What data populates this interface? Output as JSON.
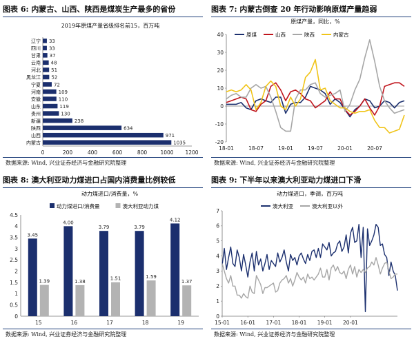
{
  "panels": [
    {
      "label": "图表 6:",
      "title": "内蒙古、山西、陕西是煤炭生产最多的省份",
      "source": "数据来源: Wind, 兴业证券经济与金融研究院整理"
    },
    {
      "label": "图表 7:",
      "title": "内蒙古倒查 20 年行动影响原煤产量趋弱",
      "source": "数据来源: Wind, 兴业证券经济与金融研究院整理"
    },
    {
      "label": "图表 8:",
      "title": "澳大利亚动力煤进口占国内消费量比例较低",
      "source": "数据来源: Wind, 兴业证券经济与金融研究院整理"
    },
    {
      "label": "图表 9:",
      "title": "下半年以来澳大利亚动力煤进口下滑",
      "source": "数据来源: Wind, 兴业证券经济与金融研究院整理"
    }
  ],
  "chart_data": [
    {
      "type": "bar",
      "orientation": "horizontal",
      "title": "2019年原煤产量省级排名前15，百万吨",
      "categories": [
        "辽宁",
        "四川",
        "甘肃",
        "云南",
        "河北",
        "黑龙江",
        "宁夏",
        "河南",
        "安徽",
        "山东",
        "贵州",
        "新疆",
        "陕西",
        "山西",
        "内蒙古"
      ],
      "values": [
        33,
        33,
        37,
        48,
        51,
        52,
        72,
        109,
        110,
        119,
        130,
        238,
        634,
        971,
        1035
      ],
      "xlim": [
        0,
        1200
      ],
      "xticks": [
        "0",
        "200",
        "400",
        "600",
        "800",
        "1000",
        "1200"
      ],
      "color": "#1b2f6e"
    },
    {
      "type": "line",
      "title": "原煤产量，同比，%",
      "ylim": [
        -20,
        40
      ],
      "yticks": [
        "-20",
        "-10",
        "0",
        "10",
        "20",
        "30",
        "40"
      ],
      "xticks": [
        "18-01",
        "18-07",
        "19-01",
        "19-07",
        "20-01",
        "20-07"
      ],
      "x_start": "2018-01",
      "series": [
        {
          "name": "原煤",
          "color": "#1b2f6e",
          "values": [
            1,
            1,
            1,
            2,
            -1,
            -2,
            3,
            4,
            3,
            2,
            5,
            5,
            -4,
            1,
            2,
            2,
            5,
            11,
            10,
            9,
            7,
            1,
            4,
            2,
            -2,
            -6,
            -2,
            0,
            4,
            3,
            -1,
            0,
            3,
            2,
            -1,
            2,
            3
          ]
        },
        {
          "name": "山西",
          "color": "#c0141c",
          "values": [
            2,
            3,
            4,
            5,
            4,
            -2,
            -3,
            1,
            3,
            11,
            13,
            9,
            3,
            8,
            9,
            7,
            4,
            3,
            -1,
            1,
            3,
            8,
            4,
            4,
            -2,
            -5,
            -3,
            0,
            4,
            -1,
            -5,
            0,
            11,
            12,
            13,
            13,
            11
          ]
        },
        {
          "name": "陕西",
          "color": "#a6a6a6",
          "values": [
            4,
            6,
            7,
            5,
            5,
            10,
            12,
            10,
            11,
            5,
            -3,
            -12,
            -14,
            -14,
            4,
            9,
            9,
            12,
            13,
            7,
            5,
            6,
            7,
            9,
            -3,
            1,
            9,
            15,
            27,
            37,
            25,
            11,
            3,
            -1,
            -4,
            -3,
            -2
          ]
        },
        {
          "name": "内蒙古",
          "color": "#f0c419",
          "values": [
            8,
            9,
            8,
            9,
            12,
            9,
            -2,
            2,
            11,
            14,
            11,
            0,
            -2,
            5,
            0,
            4,
            16,
            19,
            26,
            9,
            10,
            3,
            1,
            -1,
            -1,
            -3,
            -4,
            -3,
            -3,
            -2,
            -8,
            -12,
            -12,
            -15,
            -14,
            -13,
            -5
          ]
        }
      ]
    },
    {
      "type": "bar",
      "title": "动力煤进口/消费量，%",
      "categories": [
        "15",
        "16",
        "17",
        "18",
        "19"
      ],
      "ylim": [
        0,
        4.5
      ],
      "yticks": [
        "0",
        "0.5",
        "1",
        "1.5",
        "2",
        "2.5",
        "3",
        "3.5",
        "4",
        "4.5"
      ],
      "series": [
        {
          "name": "动力煤进口/消费量",
          "color": "#1b2f6e",
          "values": [
            3.45,
            4.0,
            3.79,
            3.79,
            4.12
          ],
          "labels": [
            "3.45",
            "4.00",
            "3.79",
            "3.79",
            "4.12"
          ]
        },
        {
          "name": "澳大利亚动力煤",
          "color": "#b3b3b3",
          "values": [
            1.39,
            1.38,
            1.51,
            1.59,
            1.37
          ],
          "labels": [
            "1.39",
            "1.38",
            "1.51",
            "1.59",
            "1.37"
          ]
        }
      ]
    },
    {
      "type": "line",
      "title": "动力煤进口，季调，百万吨",
      "ylim": [
        0,
        7
      ],
      "yticks": [
        "0",
        "1",
        "2",
        "3",
        "4",
        "5",
        "6",
        "7"
      ],
      "xticks": [
        "15-01",
        "16-01",
        "17-01",
        "18-01",
        "19-01",
        "20-01"
      ],
      "x_start": "2015-01",
      "series": [
        {
          "name": "澳大利亚",
          "color": "#1b2f6e",
          "values": [
            3.4,
            4.5,
            3.1,
            3.9,
            4.6,
            3.5,
            3.3,
            4.4,
            3.9,
            3.0,
            4.1,
            3.4,
            2.6,
            3.6,
            4.2,
            3.0,
            4.3,
            3.4,
            3.8,
            3.0,
            3.5,
            4.1,
            3.1,
            3.7,
            3.5,
            3.3,
            4.2,
            3.6,
            3.9,
            4.4,
            3.6,
            3.0,
            4.1,
            3.7,
            3.9,
            3.4,
            4.0,
            4.2,
            3.8,
            3.5,
            4.1,
            3.7,
            4.3,
            4.4,
            3.9,
            4.5,
            3.9,
            4.8,
            4.6,
            4.4,
            4.9,
            4.0,
            4.2,
            4.3,
            4.8,
            5.0,
            4.3,
            4.6,
            5.4,
            4.2,
            5.5,
            5.9,
            4.9,
            5.0,
            6.1,
            3.9,
            5.9,
            0.3,
            5.8,
            4.7,
            5.0,
            5.4,
            6.1,
            5.9,
            4.7,
            4.8,
            4.1,
            3.9,
            2.7,
            3.6,
            3.0,
            2.7,
            1.7
          ]
        },
        {
          "name": "澳大利亚以外",
          "color": "#a6a6a6",
          "values": [
            3.5,
            3.0,
            2.5,
            2.2,
            2.7,
            2.0,
            2.0,
            1.4,
            1.4,
            1.2,
            1.5,
            1.3,
            1.2,
            2.0,
            1.6,
            1.5,
            2.7,
            2.4,
            2.1,
            1.5,
            1.9,
            1.9,
            2.0,
            2.1,
            2.2,
            1.6,
            1.7,
            2.2,
            2.4,
            2.5,
            2.7,
            2.2,
            2.5,
            2.0,
            2.4,
            2.9,
            2.6,
            2.4,
            2.6,
            2.2,
            2.8,
            2.5,
            2.6,
            2.4,
            2.6,
            2.8,
            3.2,
            2.6,
            2.6,
            3.1,
            2.4,
            3.2,
            3.4,
            3.0,
            3.3,
            2.9,
            2.8,
            3.0,
            2.5,
            3.1,
            3.4,
            2.8,
            3.3,
            2.6,
            3.1,
            2.9,
            3.1,
            2.9,
            3.2,
            3.3,
            3.6,
            3.4,
            3.9,
            3.4,
            2.8,
            3.2,
            3.5,
            3.6,
            3.0,
            2.5,
            2.6,
            2.8,
            2.8
          ]
        }
      ]
    }
  ]
}
